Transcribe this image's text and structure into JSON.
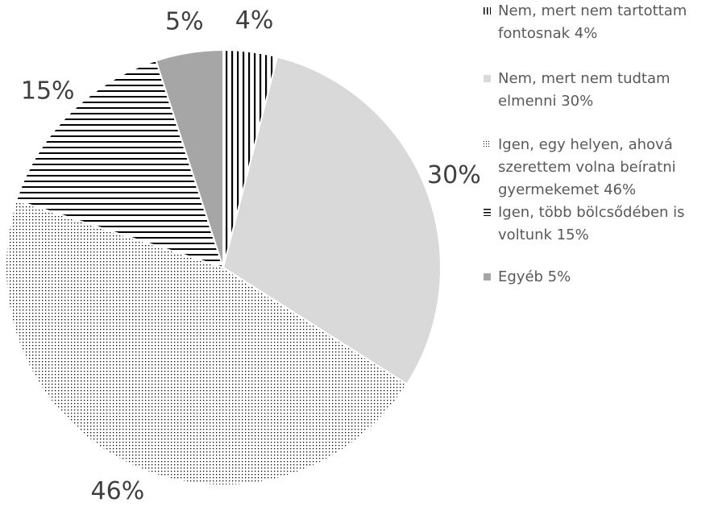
{
  "chart_data": {
    "type": "pie",
    "categories": [
      "Nem, mert nem tartottam fontosnak 4%",
      "Nem, mert nem tudtam elmenni 30%",
      "Igen, egy helyen, ahová szerettem volna beíratni gyermekemet 46%",
      "Igen, több bölcsődében is voltunk 15%",
      "Egyéb 5%"
    ],
    "values": [
      4,
      30,
      46,
      15,
      5
    ],
    "value_labels": [
      "4%",
      "30%",
      "46%",
      "15%",
      "5%"
    ],
    "colors": [
      "#000000",
      "#d9d9d9",
      "#000000",
      "#000000",
      "#a6a6a6"
    ],
    "patterns": [
      "vertical-lines",
      "solid",
      "dots",
      "horizontal-lines",
      "solid"
    ],
    "legend": "right"
  }
}
